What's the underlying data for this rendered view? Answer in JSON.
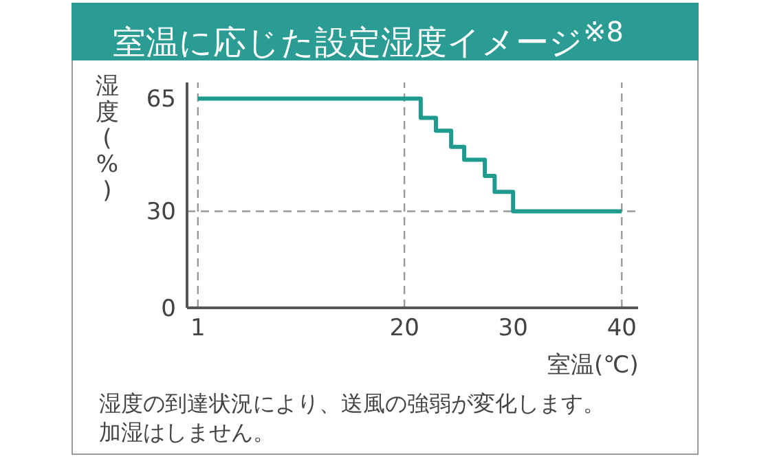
{
  "chart_data": {
    "type": "step",
    "title": "室温に応じた設定湿度イメージ$^{※8}$",
    "xlabel": "室温(℃)",
    "ylabel": "湿度(%)",
    "x": [
      1,
      21.5,
      22.9,
      24.3,
      25.5,
      27.4,
      28.3,
      30,
      40
    ],
    "values": [
      65,
      59,
      55,
      50,
      46,
      41,
      36,
      30,
      30
    ],
    "color": "#1e9a8e",
    "xlim": [
      0,
      41.5
    ],
    "xticks": [
      1,
      20,
      30,
      40
    ],
    "ylim": [
      0,
      70
    ],
    "yticks": [
      0,
      30,
      65
    ],
    "ref_lines": [
      {
        "axis": "x",
        "value": 1,
        "color": "#999999",
        "line_style": "dashed"
      },
      {
        "axis": "x",
        "value": 20,
        "color": "#999999",
        "line_style": "dashed"
      },
      {
        "axis": "x",
        "value": 40,
        "color": "#999999",
        "line_style": "dashed"
      },
      {
        "axis": "y",
        "value": 30,
        "color": "#999999",
        "line_style": "dashed"
      }
    ],
    "annotations": [
      "湿度の到達状況により、送風の強弱が変化します。",
      "加湿はしません。"
    ],
    "grid": false,
    "legend": false,
    "marker": "none"
  }
}
